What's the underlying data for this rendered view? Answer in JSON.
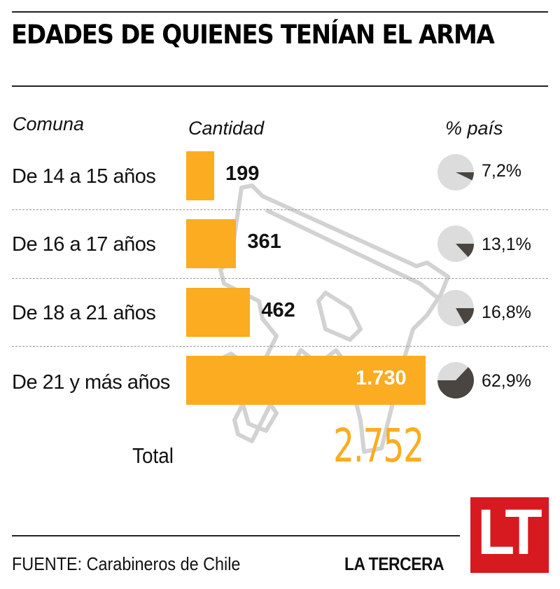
{
  "title": "EDADES DE QUIENES TENÍAN EL ARMA",
  "headers": {
    "category": "Comuna",
    "quantity": "Cantidad",
    "share": "% país"
  },
  "rows": [
    {
      "label": "De 14 a 15 años",
      "value": 199,
      "value_text": "199",
      "pct": 7.2,
      "pct_text": "7,2%"
    },
    {
      "label": "De 16 a 17 años",
      "value": 361,
      "value_text": "361",
      "pct": 13.1,
      "pct_text": "13,1%"
    },
    {
      "label": "De 18 a 21 años",
      "value": 462,
      "value_text": "462",
      "pct": 16.8,
      "pct_text": "16,8%"
    },
    {
      "label": "De 21 y más años",
      "value": 1730,
      "value_text": "1.730",
      "pct": 62.9,
      "pct_text": "62,9%"
    }
  ],
  "total": {
    "label": "Total",
    "value_text": "2.752"
  },
  "footer": {
    "source": "FUENTE:  Carabineros de Chile",
    "brand": "LA TERCERA",
    "logo_text": "LT"
  },
  "colors": {
    "bar": "#fbac20",
    "pie_bg": "#dcdcdc",
    "pie_fg": "#4a4540",
    "logo": "#d71920"
  },
  "chart_data": {
    "type": "bar",
    "title": "EDADES DE QUIENES TENÍAN EL ARMA",
    "orientation": "horizontal",
    "categories": [
      "De 14 a 15 años",
      "De 16 a 17 años",
      "De 18 a 21 años",
      "De 21 y más años"
    ],
    "series": [
      {
        "name": "Cantidad",
        "values": [
          199,
          361,
          462,
          1730
        ]
      },
      {
        "name": "% país",
        "type": "pie",
        "values": [
          7.2,
          13.1,
          16.8,
          62.9
        ]
      }
    ],
    "total": 2752,
    "xlabel": "Cantidad",
    "ylabel": "Comuna",
    "source": "Carabineros de Chile"
  }
}
